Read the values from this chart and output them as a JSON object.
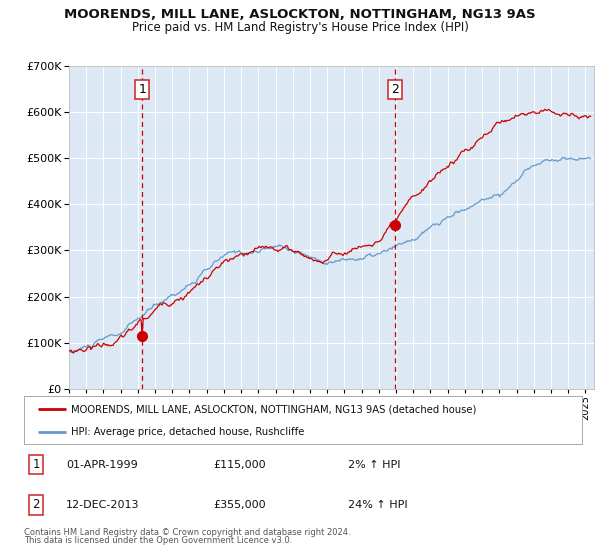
{
  "title": "MOORENDS, MILL LANE, ASLOCKTON, NOTTINGHAM, NG13 9AS",
  "subtitle": "Price paid vs. HM Land Registry's House Price Index (HPI)",
  "background_color": "#ffffff",
  "plot_bg_color": "#dce9f5",
  "grid_color": "#ffffff",
  "sale1_date_year": 1999.25,
  "sale1_price": 115000,
  "sale2_date_year": 2013.95,
  "sale2_price": 355000,
  "legend_label_red": "MOORENDS, MILL LANE, ASLOCKTON, NOTTINGHAM, NG13 9AS (detached house)",
  "legend_label_blue": "HPI: Average price, detached house, Rushcliffe",
  "annotation1_date": "01-APR-1999",
  "annotation1_price": "£115,000",
  "annotation1_hpi": "2% ↑ HPI",
  "annotation2_date": "12-DEC-2013",
  "annotation2_price": "£355,000",
  "annotation2_hpi": "24% ↑ HPI",
  "footer1": "Contains HM Land Registry data © Crown copyright and database right 2024.",
  "footer2": "This data is licensed under the Open Government Licence v3.0.",
  "red_color": "#cc0000",
  "blue_color": "#6699cc",
  "vline_color": "#cc0000",
  "ylim_max": 700000,
  "ylim_min": 0,
  "xmin": 1995.0,
  "xmax": 2025.5
}
